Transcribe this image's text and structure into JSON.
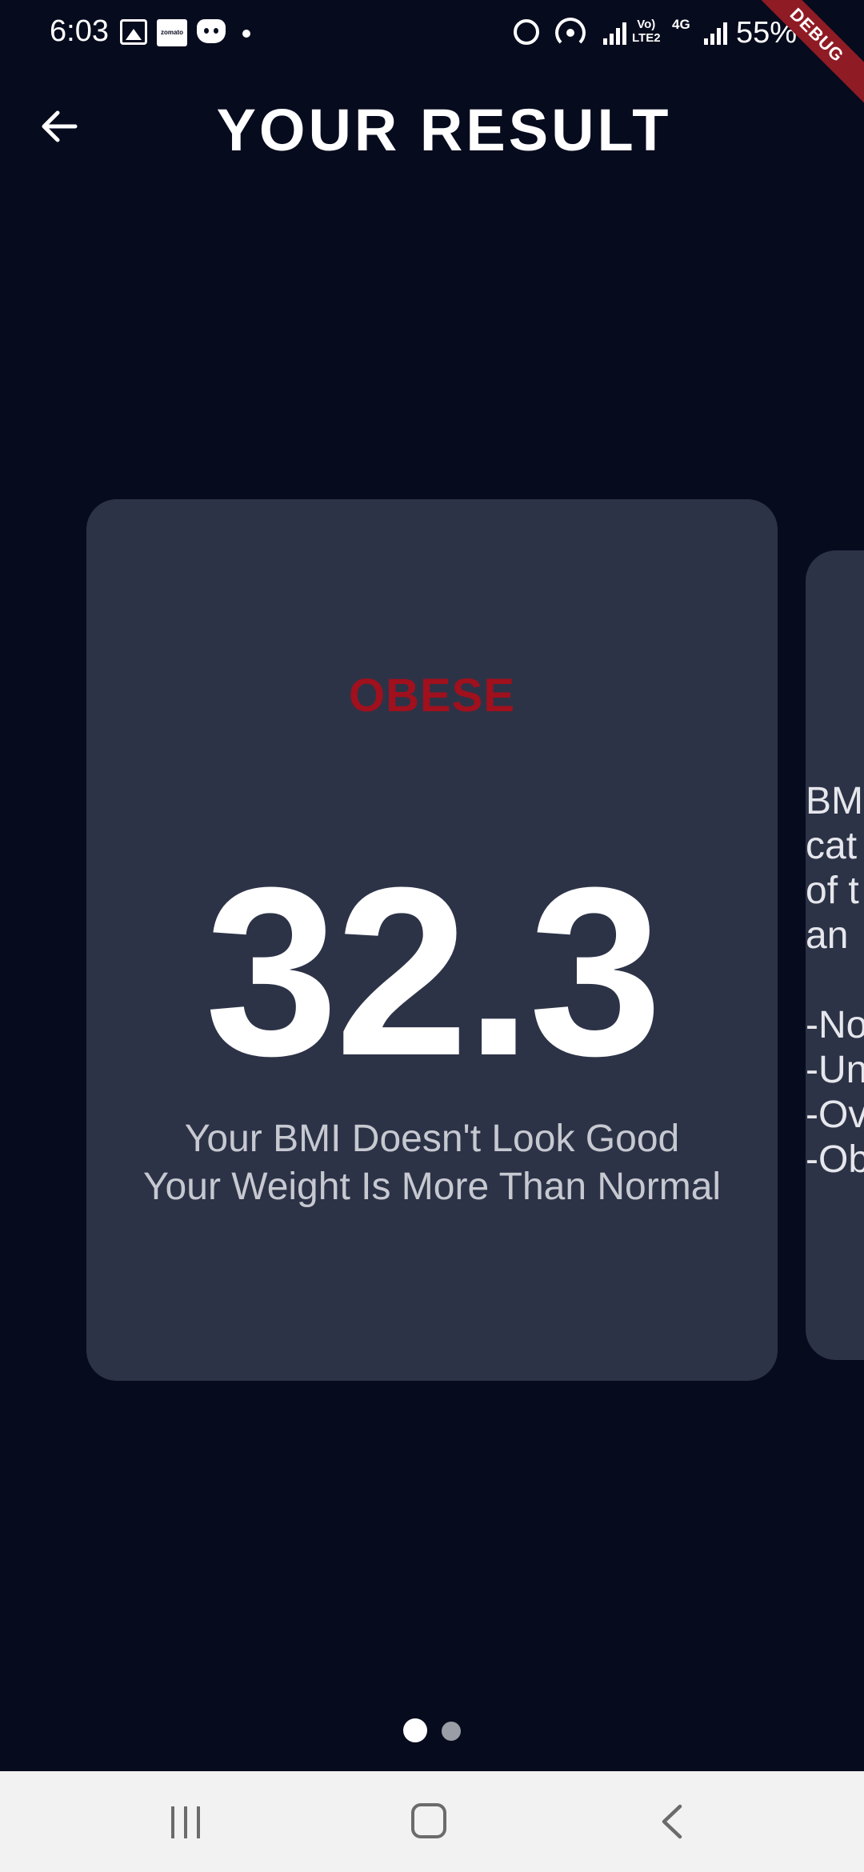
{
  "status_bar": {
    "time": "6:03",
    "lte_label": "Vo)\nLTE2",
    "network_label": "4G",
    "battery": "55%"
  },
  "debug_banner": "DEBUG",
  "app_bar": {
    "title": "YOUR RESULT",
    "back_icon": "arrow-left-icon"
  },
  "result_card": {
    "status": "OBESE",
    "status_color": "#a0101d",
    "bmi": "32.3",
    "message_line1": "Your BMI Doesn't Look Good",
    "message_line2": "Your Weight Is More Than Normal"
  },
  "info_card": {
    "text": "BM\ncat\nof t\nan\n\n-No\n-Un\n-Ov\n-Ob"
  },
  "page_indicator": {
    "total": 2,
    "active": 1
  },
  "nav_bar": {
    "icons": [
      "recents-icon",
      "home-icon",
      "back-icon"
    ]
  },
  "colors": {
    "background": "#070b1e",
    "card": "#2d3347",
    "accent": "#a0101d"
  }
}
